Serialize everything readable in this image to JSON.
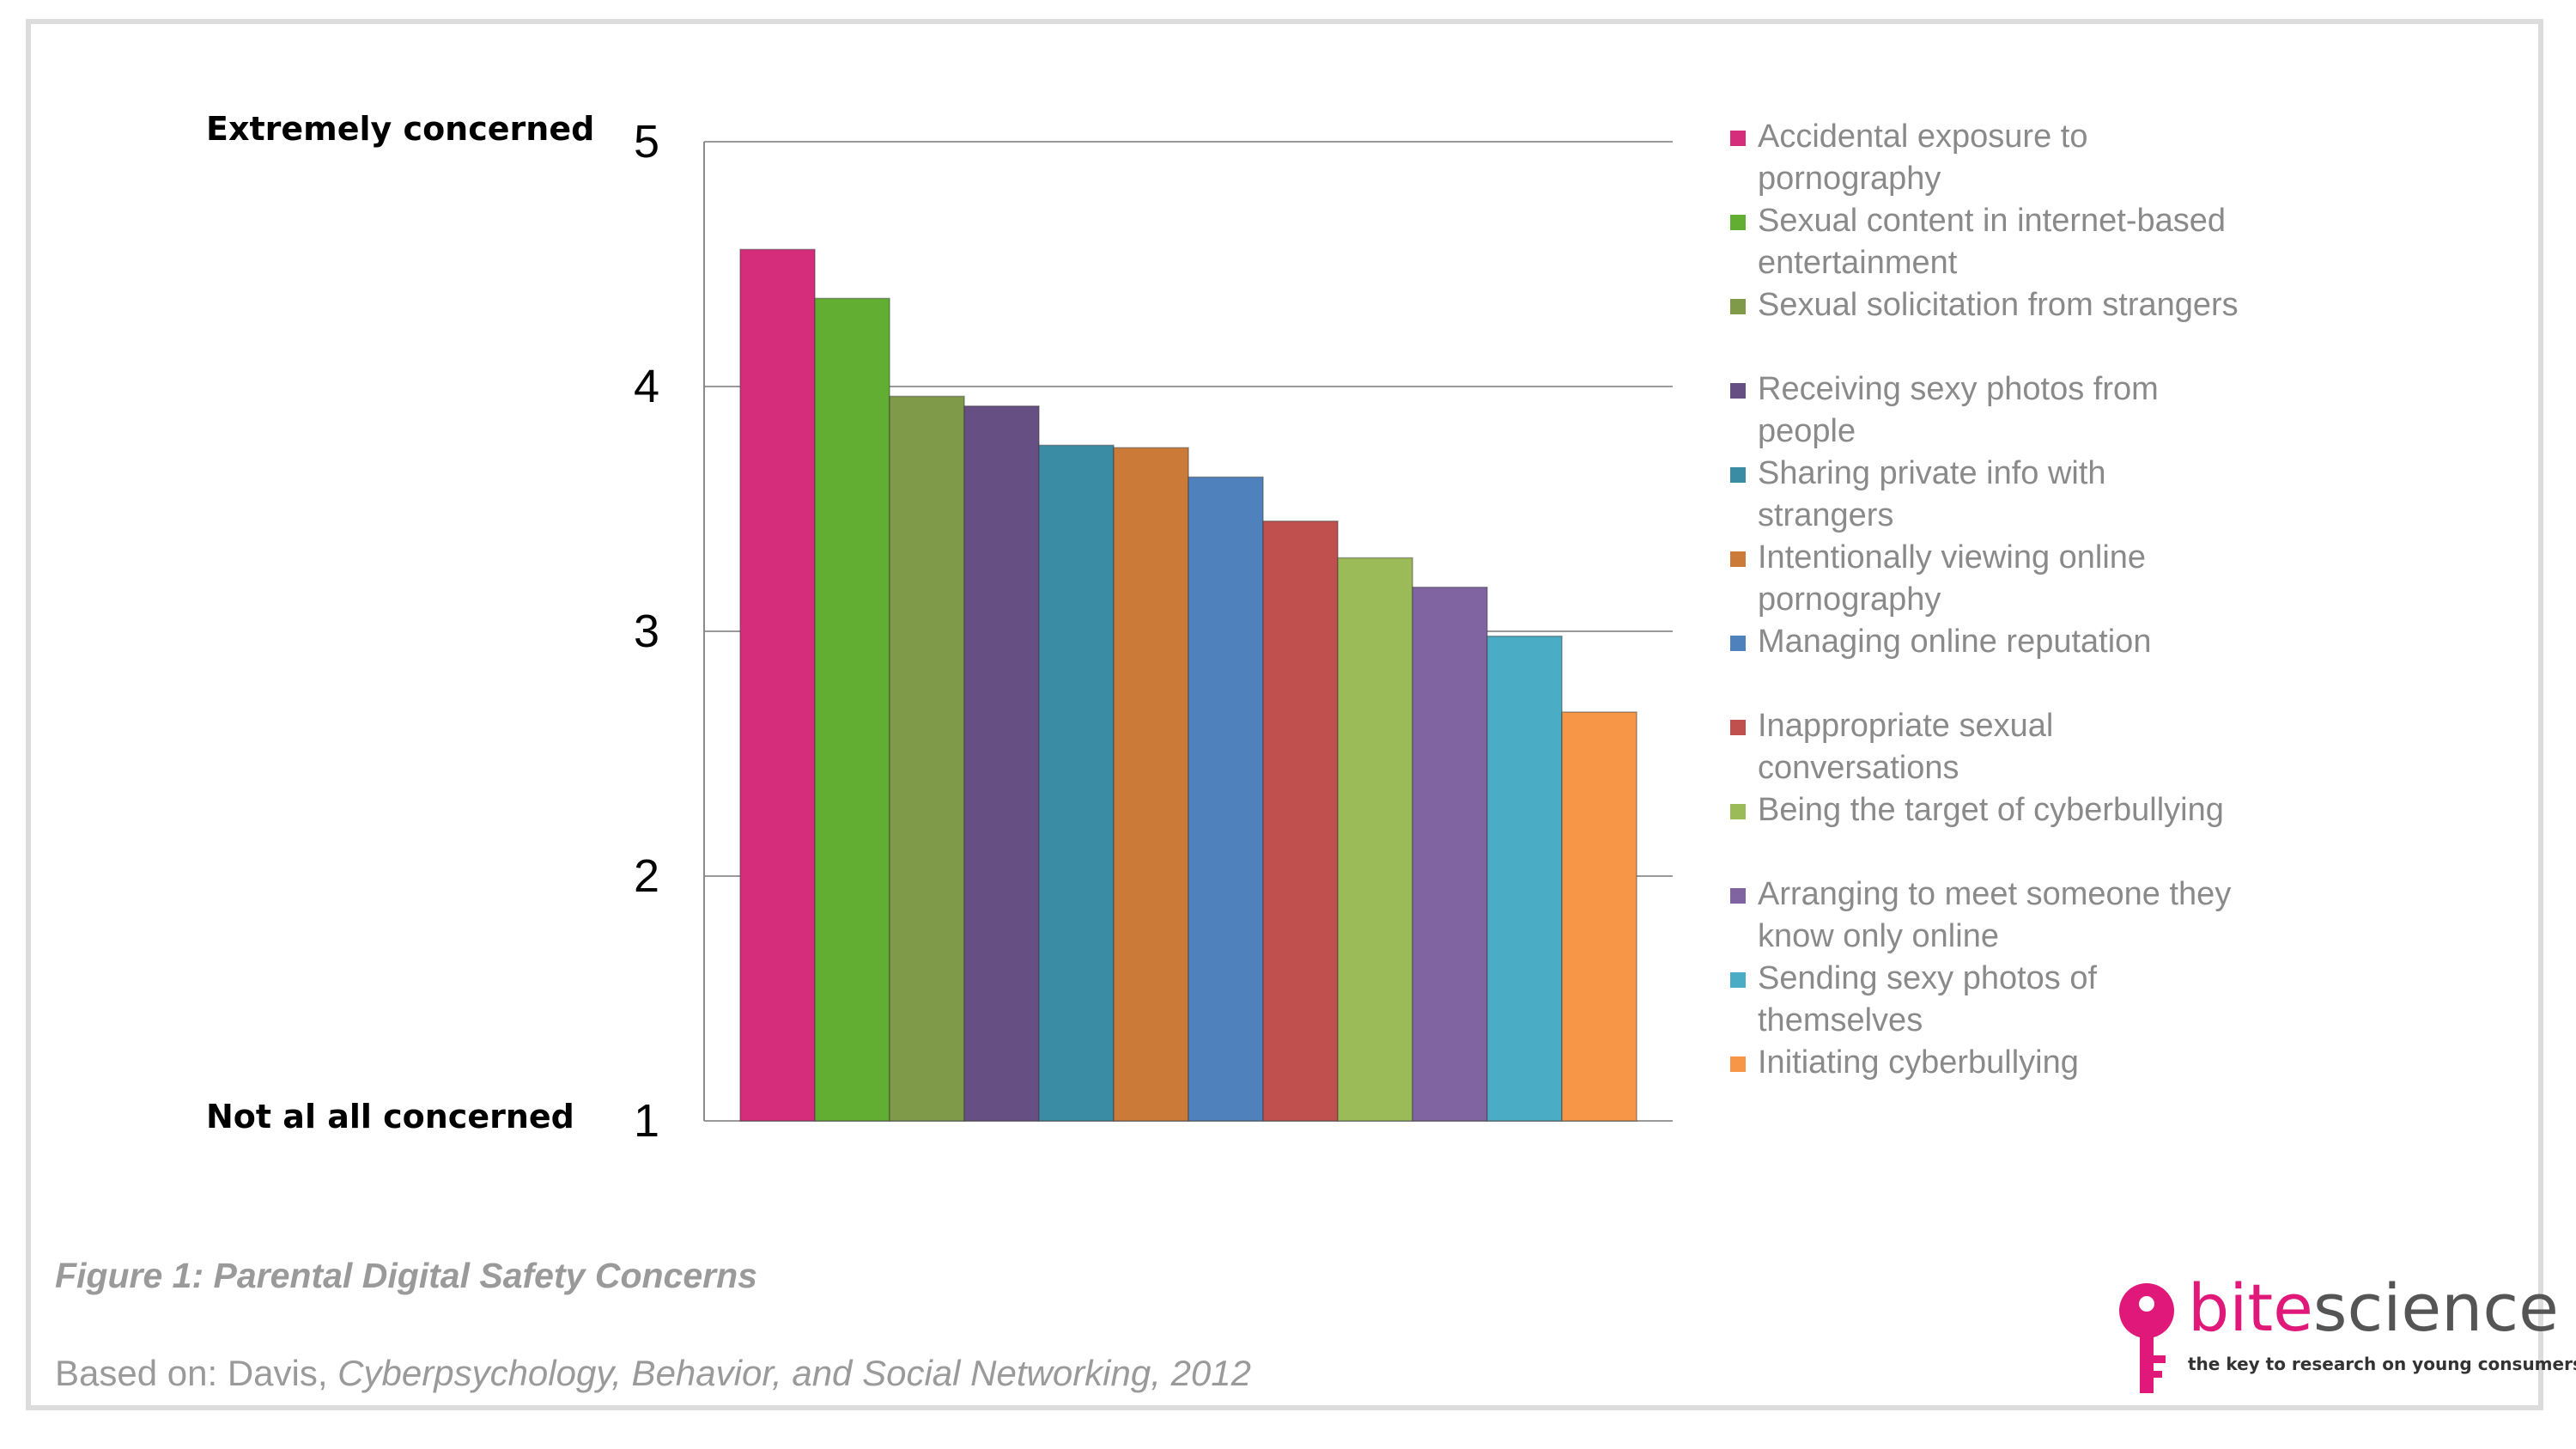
{
  "chart_data": {
    "type": "bar",
    "y_top_label": "Extremely concerned",
    "y_bottom_label": "Not al all concerned",
    "ylim": [
      1,
      5
    ],
    "yticks": [
      5,
      4,
      3,
      2,
      1
    ],
    "grid": true,
    "legend_position": "right",
    "categories": [
      "Accidental exposure to pornography",
      "Sexual content in internet-based entertainment",
      "Sexual solicitation from strangers",
      "Receiving sexy photos from people",
      "Sharing private info with strangers",
      "Intentionally viewing online pornography",
      "Managing online reputation",
      "Inappropriate sexual conversations",
      "Being the target of cyberbullying",
      "Arranging to meet someone they know only online",
      "Sending sexy photos of themselves",
      "Initiating cyberbullying"
    ],
    "values": [
      4.56,
      4.36,
      3.96,
      3.92,
      3.76,
      3.75,
      3.63,
      3.45,
      3.3,
      3.18,
      2.98,
      2.67
    ],
    "colors": [
      "#d62c7c",
      "#62ae33",
      "#7f9a48",
      "#664f82",
      "#3a8ca4",
      "#cc7a37",
      "#4f81bd",
      "#c0504d",
      "#9bbb59",
      "#8064a2",
      "#4bacc6",
      "#f79646"
    ],
    "legend": [
      {
        "line1": "Accidental exposure to",
        "line2": "pornography"
      },
      {
        "line1": "Sexual content in internet-based",
        "line2": "entertainment"
      },
      {
        "line1": "Sexual solicitation from strangers",
        "line2": ""
      },
      {
        "line1": "Receiving sexy photos from",
        "line2": "people"
      },
      {
        "line1": "Sharing private info with",
        "line2": "strangers"
      },
      {
        "line1": "Intentionally viewing online",
        "line2": "pornography"
      },
      {
        "line1": "Managing online reputation",
        "line2": ""
      },
      {
        "line1": "Inappropriate sexual",
        "line2": "conversations"
      },
      {
        "line1": "Being the target of cyberbullying",
        "line2": ""
      },
      {
        "line1": "Arranging to meet someone they",
        "line2": "know only online"
      },
      {
        "line1": "Sending sexy photos of",
        "line2": "themselves"
      },
      {
        "line1": "Initiating cyberbullying",
        "line2": ""
      }
    ]
  },
  "figure_caption": "Figure 1: Parental Digital Safety Concerns",
  "source": {
    "prefix": "Based on: Davis, ",
    "journal": "Cyberpsychology, Behavior, and Social Networking",
    "year": ", 2012"
  },
  "logo": {
    "part1": "bite",
    "part2": "science",
    "tagline": "the key to research on young consumers",
    "icon": "key-icon",
    "brand_color": "#e0187a"
  }
}
